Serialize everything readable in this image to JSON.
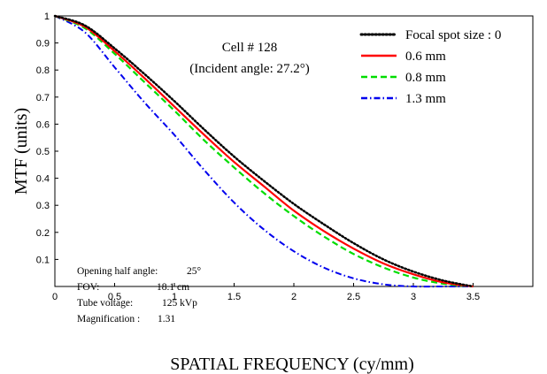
{
  "chart_data": {
    "type": "line",
    "xlabel": "SPATIAL FREQUENCY (cy/mm)",
    "ylabel": "MTF (units)",
    "xlim": [
      0,
      4
    ],
    "ylim": [
      0,
      1
    ],
    "xticks": [
      0,
      0.5,
      1,
      1.5,
      2,
      2.5,
      3,
      3.5
    ],
    "xtick_labels": [
      "0",
      "0.5",
      "1",
      "1.5",
      "2",
      "2.5",
      "3",
      "3.5"
    ],
    "yticks": [
      0.1,
      0.2,
      0.3,
      0.4,
      0.5,
      0.6,
      0.7,
      0.8,
      0.9,
      1
    ],
    "ytick_labels": [
      "0.1",
      "0.2",
      "0.3",
      "0.4",
      "0.5",
      "0.6",
      "0.7",
      "0.8",
      "0.9",
      "1"
    ],
    "grid": false,
    "legend_position": "top-right",
    "annotation_title": [
      "Cell # 128",
      "(Incident angle: 27.2°)"
    ],
    "parameters": [
      {
        "label": "Opening half angle:",
        "value": "25°"
      },
      {
        "label": "FOV:",
        "value": "18.1 cm"
      },
      {
        "label": "Tube voltage:",
        "value": "125 kVp"
      },
      {
        "label": "Magnification :",
        "value": "1.31"
      }
    ],
    "x": [
      0,
      0.25,
      0.5,
      0.75,
      1.0,
      1.25,
      1.5,
      1.75,
      2.0,
      2.25,
      2.5,
      2.75,
      3.0,
      3.25,
      3.5
    ],
    "series": [
      {
        "name": "Focal spot size : 0",
        "color": "#000000",
        "style": "dotted",
        "values": [
          1.0,
          0.965,
          0.88,
          0.785,
          0.685,
          0.58,
          0.48,
          0.39,
          0.305,
          0.23,
          0.16,
          0.1,
          0.055,
          0.022,
          0.0
        ]
      },
      {
        "name": "0.6  mm",
        "color": "#ff0000",
        "style": "solid",
        "values": [
          1.0,
          0.96,
          0.87,
          0.77,
          0.665,
          0.56,
          0.46,
          0.37,
          0.28,
          0.205,
          0.14,
          0.085,
          0.045,
          0.015,
          0.0
        ]
      },
      {
        "name": "0.8  mm",
        "color": "#00dd00",
        "style": "dashed",
        "values": [
          1.0,
          0.955,
          0.86,
          0.755,
          0.65,
          0.54,
          0.44,
          0.345,
          0.26,
          0.185,
          0.12,
          0.07,
          0.033,
          0.01,
          0.0
        ]
      },
      {
        "name": "1.3  mm",
        "color": "#0000ee",
        "style": "dashdot",
        "values": [
          1.0,
          0.94,
          0.81,
          0.68,
          0.56,
          0.43,
          0.31,
          0.21,
          0.13,
          0.07,
          0.03,
          0.008,
          0.0,
          0.0,
          0.0
        ]
      }
    ]
  }
}
